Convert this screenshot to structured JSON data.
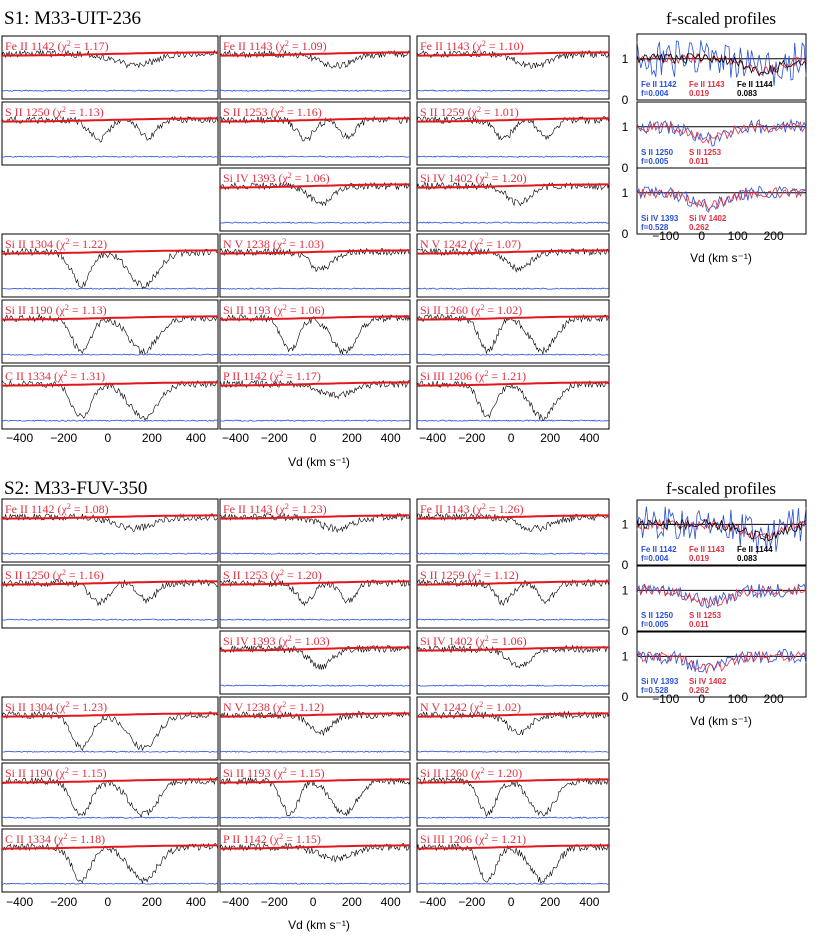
{
  "chart_data": [
    {
      "type": "line",
      "title": "S1: M33-UIT-236",
      "xlabel": "Vd (km s⁻¹)",
      "xlim": [
        -480,
        500
      ],
      "xticks": [
        -400,
        -200,
        0,
        200,
        400
      ],
      "colors": {
        "data": "#000000",
        "model": "#e0181e",
        "error": "#2850d8",
        "label": "#e03040"
      },
      "panels": [
        {
          "label": "Fe II 1142",
          "chi2": "1.17",
          "row": 0,
          "col": 0
        },
        {
          "label": "Fe II 1143",
          "chi2": "1.09",
          "row": 0,
          "col": 1
        },
        {
          "label": "Fe II 1143",
          "chi2": "1.10",
          "row": 0,
          "col": 2
        },
        {
          "label": "S II 1250",
          "chi2": "1.13",
          "row": 1,
          "col": 0
        },
        {
          "label": "S II 1253",
          "chi2": "1.16",
          "row": 1,
          "col": 1
        },
        {
          "label": "S II 1259",
          "chi2": "1.01",
          "row": 1,
          "col": 2
        },
        {
          "label": "Si IV 1393",
          "chi2": "1.06",
          "row": 2,
          "col": 1
        },
        {
          "label": "Si IV 1402",
          "chi2": "1.20",
          "row": 2,
          "col": 2
        },
        {
          "label": "Si II 1304",
          "chi2": "1.22",
          "row": 3,
          "col": 0
        },
        {
          "label": "N V 1238",
          "chi2": "1.03",
          "row": 3,
          "col": 1
        },
        {
          "label": "N V 1242",
          "chi2": "1.07",
          "row": 3,
          "col": 2
        },
        {
          "label": "Si II 1190",
          "chi2": "1.13",
          "row": 4,
          "col": 0
        },
        {
          "label": "Si II 1193",
          "chi2": "1.06",
          "row": 4,
          "col": 1
        },
        {
          "label": "Si II 1260",
          "chi2": "1.02",
          "row": 4,
          "col": 2
        },
        {
          "label": "C II 1334",
          "chi2": "1.31",
          "row": 5,
          "col": 0
        },
        {
          "label": "P II 1142",
          "chi2": "1.17",
          "row": 5,
          "col": 1
        },
        {
          "label": "Si III 1206",
          "chi2": "1.21",
          "row": 5,
          "col": 2
        }
      ],
      "side": {
        "title": "f-scaled profiles",
        "xlabel": "Vd (km s⁻¹)",
        "xlim": [
          -180,
          290
        ],
        "xticks": [
          -100,
          0,
          100,
          200
        ],
        "ylim": [
          0,
          1.6
        ],
        "yticks": [
          0,
          1
        ],
        "panels": [
          {
            "legend": [
              {
                "name": "Fe II 1142",
                "f": "f=0.004",
                "color": "#2850d8"
              },
              {
                "name": "Fe II 1143",
                "f": "0.019",
                "color": "#e03040"
              },
              {
                "name": "Fe II 1144",
                "f": "0.083",
                "color": "#000000"
              }
            ]
          },
          {
            "legend": [
              {
                "name": "S II 1250",
                "f": "f=0.005",
                "color": "#2850d8"
              },
              {
                "name": "S II 1253",
                "f": "0.011",
                "color": "#e03040"
              }
            ]
          },
          {
            "legend": [
              {
                "name": "Si IV 1393",
                "f": "f=0.528",
                "color": "#2850d8"
              },
              {
                "name": "Si IV 1402",
                "f": "0.262",
                "color": "#e03040"
              }
            ]
          }
        ]
      }
    },
    {
      "type": "line",
      "title": "S2: M33-FUV-350",
      "xlabel": "Vd (km s⁻¹)",
      "xlim": [
        -480,
        500
      ],
      "xticks": [
        -400,
        -200,
        0,
        200,
        400
      ],
      "colors": {
        "data": "#000000",
        "model": "#e0181e",
        "error": "#2850d8",
        "label": "#e03040"
      },
      "panels": [
        {
          "label": "Fe II 1142",
          "chi2": "1.08",
          "row": 0,
          "col": 0
        },
        {
          "label": "Fe II 1143",
          "chi2": "1.23",
          "row": 0,
          "col": 1
        },
        {
          "label": "Fe II 1143",
          "chi2": "1.26",
          "row": 0,
          "col": 2
        },
        {
          "label": "S II 1250",
          "chi2": "1.16",
          "row": 1,
          "col": 0
        },
        {
          "label": "S II 1253",
          "chi2": "1.20",
          "row": 1,
          "col": 1
        },
        {
          "label": "S II 1259",
          "chi2": "1.12",
          "row": 1,
          "col": 2
        },
        {
          "label": "Si IV 1393",
          "chi2": "1.03",
          "row": 2,
          "col": 1
        },
        {
          "label": "Si IV 1402",
          "chi2": "1.06",
          "row": 2,
          "col": 2
        },
        {
          "label": "Si II 1304",
          "chi2": "1.23",
          "row": 3,
          "col": 0
        },
        {
          "label": "N V 1238",
          "chi2": "1.12",
          "row": 3,
          "col": 1
        },
        {
          "label": "N V 1242",
          "chi2": "1.02",
          "row": 3,
          "col": 2
        },
        {
          "label": "Si II 1190",
          "chi2": "1.15",
          "row": 4,
          "col": 0
        },
        {
          "label": "Si II 1193",
          "chi2": "1.15",
          "row": 4,
          "col": 1
        },
        {
          "label": "Si II 1260",
          "chi2": "1.20",
          "row": 4,
          "col": 2
        },
        {
          "label": "C II 1334",
          "chi2": "1.18",
          "row": 5,
          "col": 0
        },
        {
          "label": "P II 1142",
          "chi2": "1.15",
          "row": 5,
          "col": 1
        },
        {
          "label": "Si III 1206",
          "chi2": "1.21",
          "row": 5,
          "col": 2
        }
      ],
      "side": {
        "title": "f-scaled profiles",
        "xlabel": "Vd (km s⁻¹)",
        "xlim": [
          -180,
          290
        ],
        "xticks": [
          -100,
          0,
          100,
          200
        ],
        "ylim": [
          0,
          1.6
        ],
        "yticks": [
          0,
          1
        ],
        "panels": [
          {
            "legend": [
              {
                "name": "Fe II 1142",
                "f": "f=0.004",
                "color": "#2850d8"
              },
              {
                "name": "Fe II 1143",
                "f": "0.019",
                "color": "#e03040"
              },
              {
                "name": "Fe II 1144",
                "f": "0.083",
                "color": "#000000"
              }
            ]
          },
          {
            "legend": [
              {
                "name": "S II 1250",
                "f": "f=0.005",
                "color": "#2850d8"
              },
              {
                "name": "S II 1253",
                "f": "0.011",
                "color": "#e03040"
              }
            ]
          },
          {
            "legend": [
              {
                "name": "Si IV 1393",
                "f": "f=0.528",
                "color": "#2850d8"
              },
              {
                "name": "Si IV 1402",
                "f": "0.262",
                "color": "#e03040"
              }
            ]
          }
        ]
      }
    }
  ]
}
